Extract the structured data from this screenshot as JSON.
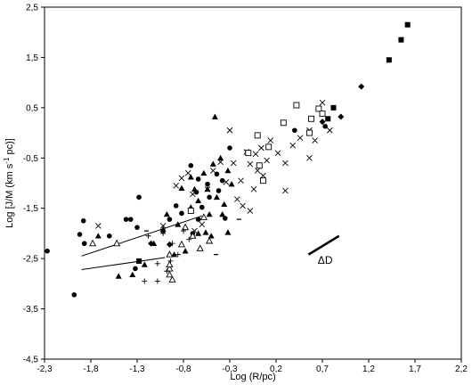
{
  "chart_data": {
    "type": "scatter",
    "xlabel": "Log (R/pc)",
    "ylabel_parts": [
      "Log [J/M (km s",
      "-1",
      " pc)]"
    ],
    "xlim": [
      -2.3,
      2.2
    ],
    "ylim": [
      -4.5,
      2.5
    ],
    "xticks": [
      "-2,3",
      "-1,8",
      "-1,3",
      "-0,8",
      "-0,3",
      "0,2",
      "0,7",
      "1,2",
      "1,7",
      "2,2"
    ],
    "yticks": [
      "2,5",
      "1,5",
      "0,5",
      "-0,5",
      "-1,5",
      "-2,5",
      "-3,5",
      "-4,5"
    ],
    "grid": false,
    "legend": "none",
    "annotation": {
      "label": "ΔD",
      "segment": [
        [
          0.55,
          -2.42
        ],
        [
          0.88,
          -2.05
        ]
      ],
      "at": [
        0.65,
        -2.6
      ]
    },
    "fit_lines": [
      {
        "x": [
          -1.9,
          -0.6
        ],
        "y": [
          -2.45,
          -1.65
        ]
      },
      {
        "x": [
          -1.9,
          -1.0
        ],
        "y": [
          -2.72,
          -2.48
        ]
      }
    ],
    "series": [
      {
        "marker": "filled-circle",
        "values": [
          [
            -2.27,
            -2.35
          ],
          [
            -1.98,
            -3.22
          ],
          [
            -1.92,
            -2.02
          ],
          [
            -1.88,
            -1.75
          ],
          [
            -1.87,
            -2.2
          ],
          [
            -1.6,
            -2.05
          ],
          [
            -1.42,
            -1.72
          ],
          [
            -1.37,
            -1.72
          ],
          [
            -1.3,
            -1.88
          ],
          [
            -1.28,
            -1.28
          ],
          [
            -1.32,
            -2.7
          ],
          [
            -1.02,
            -1.95
          ],
          [
            -0.95,
            -1.72
          ],
          [
            -0.88,
            -1.45
          ],
          [
            -0.82,
            -1.6
          ],
          [
            -0.72,
            -0.65
          ],
          [
            -0.64,
            -0.92
          ],
          [
            -0.66,
            -1.18
          ],
          [
            -0.6,
            -1.48
          ],
          [
            -0.54,
            -1.02
          ],
          [
            -0.44,
            -0.82
          ],
          [
            -0.38,
            -0.95
          ],
          [
            -0.52,
            -1.28
          ],
          [
            -0.64,
            -1.72
          ],
          [
            -0.7,
            -2.0
          ],
          [
            0.4,
            0.05
          ],
          [
            0.73,
            0.13
          ],
          [
            -0.35,
            -1.7
          ],
          [
            -0.3,
            -0.3
          ],
          [
            -0.42,
            -1.15
          ]
        ]
      },
      {
        "marker": "filled-triangle",
        "values": [
          [
            -1.72,
            -2.05
          ],
          [
            -1.5,
            -2.85
          ],
          [
            -1.35,
            -2.82
          ],
          [
            -1.22,
            -2.62
          ],
          [
            -1.12,
            -2.2
          ],
          [
            -1.02,
            -1.92
          ],
          [
            -0.98,
            -1.62
          ],
          [
            -0.9,
            -2.42
          ],
          [
            -0.86,
            -1.82
          ],
          [
            -0.78,
            -2.35
          ],
          [
            -0.72,
            -1.48
          ],
          [
            -0.68,
            -1.12
          ],
          [
            -0.64,
            -2.0
          ],
          [
            -0.58,
            -0.8
          ],
          [
            -0.54,
            -1.12
          ],
          [
            -0.52,
            -1.62
          ],
          [
            -0.48,
            -0.62
          ],
          [
            -0.44,
            -1.28
          ],
          [
            -0.4,
            -0.5
          ],
          [
            -0.36,
            -1.42
          ],
          [
            -0.32,
            -0.75
          ],
          [
            -0.28,
            -1.02
          ],
          [
            -0.38,
            -1.62
          ],
          [
            -0.5,
            -2.05
          ],
          [
            -0.56,
            -1.98
          ],
          [
            -0.64,
            -1.35
          ],
          [
            -0.72,
            -0.88
          ],
          [
            -0.82,
            -1.1
          ],
          [
            -0.46,
            0.32
          ],
          [
            -0.32,
            -1.98
          ]
        ]
      },
      {
        "marker": "open-triangle",
        "values": [
          [
            -1.78,
            -2.2
          ],
          [
            -1.52,
            -2.2
          ],
          [
            -0.95,
            -2.42
          ],
          [
            -0.92,
            -2.92
          ],
          [
            -0.82,
            -2.22
          ],
          [
            -0.78,
            -1.88
          ],
          [
            -0.7,
            -2.05
          ],
          [
            -0.62,
            -2.3
          ],
          [
            -0.58,
            -1.68
          ],
          [
            -0.52,
            -2.15
          ],
          [
            -0.95,
            -2.7
          ],
          [
            -0.95,
            -2.82
          ],
          [
            -0.95,
            -2.62
          ]
        ]
      },
      {
        "marker": "cross-x",
        "values": [
          [
            -1.72,
            -1.85
          ],
          [
            -1.02,
            -1.85
          ],
          [
            -0.88,
            -1.05
          ],
          [
            -0.75,
            -0.8
          ],
          [
            -0.7,
            -1.22
          ],
          [
            -0.6,
            -1.82
          ],
          [
            -0.54,
            -1.12
          ],
          [
            -0.48,
            -0.75
          ],
          [
            -0.4,
            -0.58
          ],
          [
            -0.34,
            -0.98
          ],
          [
            -0.26,
            -0.6
          ],
          [
            -0.22,
            -1.32
          ],
          [
            -0.18,
            -0.95
          ],
          [
            -0.12,
            -0.38
          ],
          [
            -0.08,
            -0.62
          ],
          [
            -0.04,
            -1.12
          ],
          [
            0.0,
            -0.75
          ],
          [
            0.04,
            -0.3
          ],
          [
            0.1,
            -0.55
          ],
          [
            0.14,
            -0.15
          ],
          [
            0.22,
            -0.4
          ],
          [
            0.3,
            -0.6
          ],
          [
            0.38,
            -0.25
          ],
          [
            0.46,
            -0.1
          ],
          [
            0.56,
            0.05
          ],
          [
            0.62,
            -0.15
          ],
          [
            0.7,
            0.6
          ],
          [
            0.78,
            0.05
          ],
          [
            -0.3,
            0.05
          ],
          [
            -0.16,
            -1.45
          ],
          [
            -0.08,
            -1.55
          ],
          [
            -0.02,
            -0.42
          ],
          [
            0.06,
            -0.85
          ],
          [
            0.3,
            -1.15
          ],
          [
            0.56,
            -0.5
          ],
          [
            -0.68,
            -1.95
          ],
          [
            -0.82,
            -0.9
          ]
        ]
      },
      {
        "marker": "plus",
        "values": [
          [
            -1.18,
            -2.05
          ],
          [
            -1.08,
            -2.6
          ],
          [
            -1.02,
            -2.0
          ],
          [
            -1.22,
            -2.95
          ],
          [
            -1.08,
            -2.95
          ],
          [
            -0.94,
            -2.55
          ],
          [
            -0.98,
            -2.75
          ],
          [
            -0.86,
            -2.42
          ],
          [
            -0.74,
            -2.12
          ],
          [
            -0.8,
            -1.95
          ],
          [
            -0.92,
            -2.2
          ]
        ]
      },
      {
        "marker": "open-square",
        "values": [
          [
            -0.1,
            -0.4
          ],
          [
            0.0,
            -0.05
          ],
          [
            0.02,
            -0.65
          ],
          [
            0.06,
            -0.95
          ],
          [
            0.12,
            -0.28
          ],
          [
            0.28,
            0.2
          ],
          [
            0.42,
            0.55
          ],
          [
            0.56,
            0.0
          ],
          [
            0.58,
            0.28
          ],
          [
            0.66,
            0.48
          ],
          [
            0.7,
            0.38
          ],
          [
            -0.72,
            -1.55
          ]
        ]
      },
      {
        "marker": "filled-square",
        "values": [
          [
            0.82,
            0.5
          ],
          [
            0.76,
            0.28
          ],
          [
            -1.28,
            -2.55
          ],
          [
            1.42,
            1.45
          ],
          [
            1.55,
            1.85
          ],
          [
            1.62,
            2.15
          ]
        ]
      },
      {
        "marker": "filled-diamond",
        "values": [
          [
            0.9,
            0.32
          ],
          [
            1.12,
            0.92
          ],
          [
            -1.15,
            -2.2
          ],
          [
            -0.95,
            -2.22
          ],
          [
            0.7,
            0.22
          ]
        ]
      },
      {
        "marker": "dash",
        "values": [
          [
            -0.2,
            -1.72
          ],
          [
            -1.2,
            -1.95
          ],
          [
            -0.45,
            -2.42
          ]
        ]
      }
    ]
  }
}
